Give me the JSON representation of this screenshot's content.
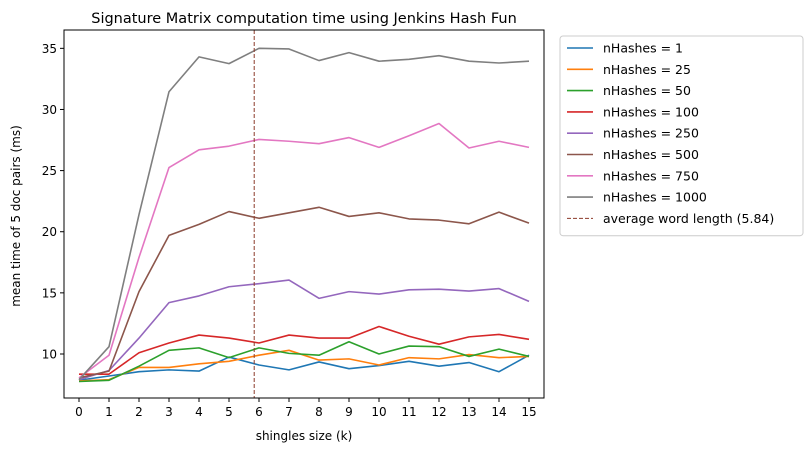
{
  "chart_data": {
    "type": "line",
    "title": "Signature Matrix computation time  using Jenkins Hash Fun",
    "xlabel": "shingles size (k)",
    "ylabel": "mean time of 5 doc pairs (ms)",
    "xlim": [
      -0.5,
      15.5
    ],
    "ylim": [
      6.4,
      36.5
    ],
    "xticks": [
      0,
      1,
      2,
      3,
      4,
      5,
      6,
      7,
      8,
      9,
      10,
      11,
      12,
      13,
      14,
      15
    ],
    "yticks": [
      10,
      15,
      20,
      25,
      30,
      35
    ],
    "grid": false,
    "legend_position": "outside-right-top",
    "x": [
      0,
      1,
      2,
      3,
      4,
      5,
      6,
      7,
      8,
      9,
      10,
      11,
      12,
      13,
      14,
      15
    ],
    "series": [
      {
        "name": "nHashes = 1",
        "color": "#1f77b4",
        "values": [
          7.85,
          8.2,
          8.55,
          8.7,
          8.6,
          9.75,
          9.1,
          8.7,
          9.35,
          8.8,
          9.05,
          9.4,
          9.0,
          9.3,
          8.55,
          9.9
        ]
      },
      {
        "name": "nHashes = 25",
        "color": "#ff7f0e",
        "values": [
          7.8,
          7.9,
          8.9,
          8.9,
          9.2,
          9.4,
          9.9,
          10.3,
          9.5,
          9.6,
          9.1,
          9.7,
          9.6,
          9.95,
          9.7,
          9.8
        ]
      },
      {
        "name": "nHashes = 50",
        "color": "#2ca02c",
        "values": [
          7.75,
          7.85,
          9.0,
          10.3,
          10.5,
          9.7,
          10.5,
          10.05,
          9.9,
          11.0,
          10.0,
          10.65,
          10.6,
          9.8,
          10.4,
          9.8
        ]
      },
      {
        "name": "nHashes = 100",
        "color": "#d62728",
        "values": [
          8.35,
          8.35,
          10.1,
          10.9,
          11.55,
          11.3,
          10.9,
          11.55,
          11.3,
          11.3,
          12.25,
          11.45,
          10.8,
          11.4,
          11.6,
          11.2
        ]
      },
      {
        "name": "nHashes = 250",
        "color": "#9467bd",
        "values": [
          7.9,
          8.65,
          11.3,
          14.2,
          14.75,
          15.5,
          15.75,
          16.05,
          14.55,
          15.1,
          14.9,
          15.25,
          15.3,
          15.15,
          15.35,
          14.3
        ]
      },
      {
        "name": "nHashes = 500",
        "color": "#8c564b",
        "values": [
          8.05,
          8.6,
          15.1,
          19.7,
          20.6,
          21.65,
          21.1,
          21.55,
          22.0,
          21.25,
          21.55,
          21.05,
          20.95,
          20.65,
          21.6,
          20.7
        ]
      },
      {
        "name": "nHashes = 750",
        "color": "#e377c2",
        "values": [
          8.05,
          9.9,
          17.9,
          25.25,
          26.7,
          27.0,
          27.55,
          27.4,
          27.2,
          27.7,
          26.9,
          27.85,
          28.85,
          26.85,
          27.4,
          26.9
        ]
      },
      {
        "name": "nHashes = 1000",
        "color": "#7f7f7f",
        "values": [
          7.9,
          10.6,
          21.4,
          31.45,
          34.3,
          33.75,
          35.0,
          34.95,
          34.0,
          34.65,
          33.95,
          34.1,
          34.4,
          33.95,
          33.8,
          33.95
        ]
      }
    ],
    "vline": {
      "name": "average word length (5.84)",
      "x": 5.84,
      "color": "#8c3a2a"
    }
  }
}
